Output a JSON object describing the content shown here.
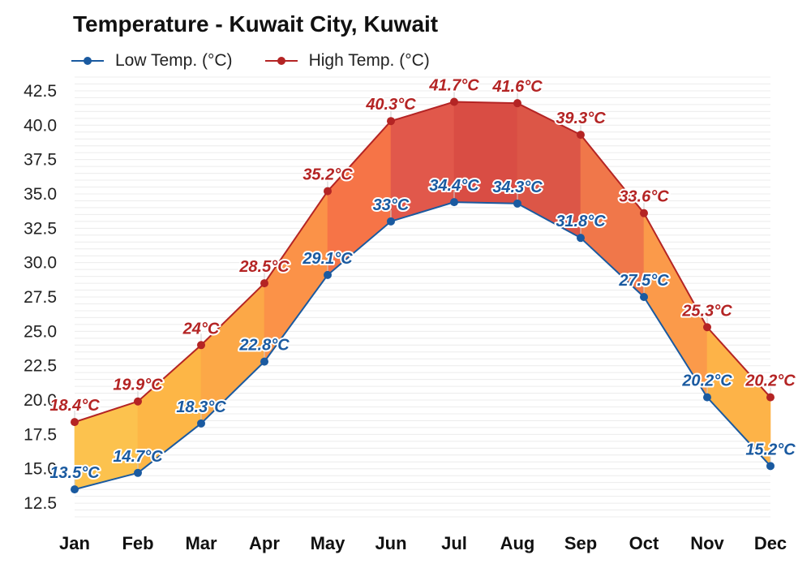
{
  "chart_data": {
    "type": "line",
    "title": "Temperature - Kuwait City, Kuwait",
    "categories": [
      "Jan",
      "Feb",
      "Mar",
      "Apr",
      "May",
      "Jun",
      "Jul",
      "Aug",
      "Sep",
      "Oct",
      "Nov",
      "Dec"
    ],
    "series": [
      {
        "name": "Low Temp. (°C)",
        "color": "#1a5aa0",
        "values": [
          13.5,
          14.7,
          18.3,
          22.8,
          29.1,
          33,
          34.4,
          34.3,
          31.8,
          27.5,
          20.2,
          15.2
        ],
        "labels": [
          "13.5°C",
          "14.7°C",
          "18.3°C",
          "22.8°C",
          "29.1°C",
          "33°C",
          "34.4°C",
          "34.3°C",
          "31.8°C",
          "27.5°C",
          "20.2°C",
          "15.2°C"
        ]
      },
      {
        "name": "High Temp. (°C)",
        "color": "#b42424",
        "values": [
          18.4,
          19.9,
          24,
          28.5,
          35.2,
          40.3,
          41.7,
          41.6,
          39.3,
          33.6,
          25.3,
          20.2
        ],
        "labels": [
          "18.4°C",
          "19.9°C",
          "24°C",
          "28.5°C",
          "35.2°C",
          "40.3°C",
          "41.7°C",
          "41.6°C",
          "39.3°C",
          "33.6°C",
          "25.3°C",
          "20.2°C"
        ]
      }
    ],
    "band_colors": [
      "#fcc24e",
      "#fdb646",
      "#fca847",
      "#fb9248",
      "#f67447",
      "#e1584b",
      "#d94d44",
      "#dc5647",
      "#f0774a",
      "#fb9a4a",
      "#fdb348",
      "#fdc24e"
    ],
    "yticks": [
      "42.5",
      "40.0",
      "37.5",
      "35.0",
      "32.5",
      "30.0",
      "27.5",
      "25.0",
      "22.5",
      "20.0",
      "17.5",
      "15.0",
      "12.5"
    ],
    "ylim": [
      11.5,
      43.5
    ],
    "grid": true,
    "legend_position": "top-left"
  }
}
